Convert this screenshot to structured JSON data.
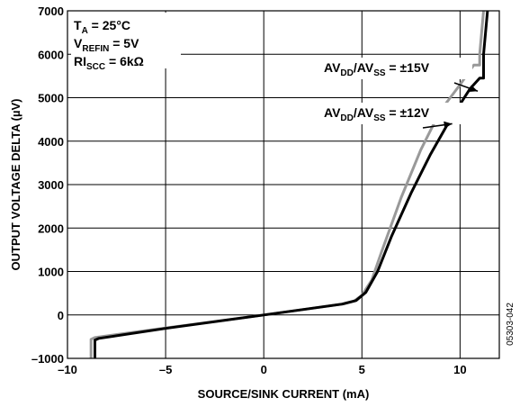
{
  "chart_data": {
    "type": "line",
    "xlabel": "SOURCE/SINK CURRENT (mA)",
    "ylabel": "OUTPUT VOLTAGE DELTA (µV)",
    "xlim": [
      -10,
      12
    ],
    "ylim": [
      -1000,
      7000
    ],
    "x_ticks": [
      -10,
      -5,
      0,
      5,
      10
    ],
    "x_tick_labels": [
      "–10",
      "–5",
      "0",
      "5",
      "10"
    ],
    "y_ticks": [
      -1000,
      0,
      1000,
      2000,
      3000,
      4000,
      5000,
      6000,
      7000
    ],
    "y_tick_labels": [
      "–1000",
      "0",
      "1000",
      "2000",
      "3000",
      "4000",
      "5000",
      "6000",
      "7000"
    ],
    "grid": true,
    "conditions": [
      {
        "main": "T",
        "sub": "A",
        "rest": " = 25°C"
      },
      {
        "main": "V",
        "sub": "REFIN",
        "rest": " = 5V"
      },
      {
        "main": "RI",
        "sub": "SCC",
        "rest": " = 6kΩ"
      }
    ],
    "series": [
      {
        "label_parts": {
          "a": "AV",
          "a_sub": "DD",
          "b": "/AV",
          "b_sub": "SS",
          "c": " = ±15V"
        },
        "color": "#999999",
        "x": [
          -8.8,
          -8.8,
          -8.6,
          -5,
          0,
          4,
          4.6,
          5,
          5.5,
          6,
          7,
          8,
          9,
          10,
          10.7,
          11.0,
          11.0,
          11.2
        ],
        "y": [
          -1000,
          -560,
          -520,
          -300,
          0,
          250,
          320,
          450,
          800,
          1450,
          2700,
          3800,
          4700,
          5300,
          5750,
          5750,
          6000,
          7000
        ]
      },
      {
        "label_parts": {
          "a": "AV",
          "a_sub": "DD",
          "b": "/AV",
          "b_sub": "SS",
          "c": " = ±12V"
        },
        "color": "#000000",
        "x": [
          -8.6,
          -8.6,
          -8.4,
          -5,
          0,
          4,
          4.7,
          5.2,
          5.8,
          6.5,
          7.5,
          8.5,
          9.5,
          10.5,
          11.0,
          11.2,
          11.2,
          11.4
        ],
        "y": [
          -1000,
          -580,
          -540,
          -310,
          0,
          250,
          330,
          520,
          1000,
          1800,
          2800,
          3700,
          4500,
          5200,
          5450,
          5450,
          6000,
          7000
        ]
      }
    ],
    "figure_id": "05303-042"
  }
}
